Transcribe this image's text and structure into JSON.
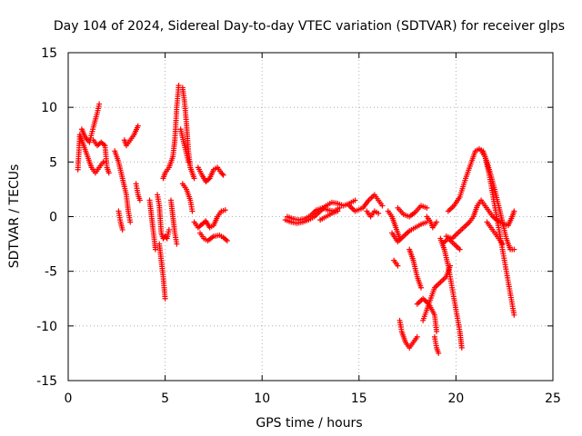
{
  "chart_data": {
    "type": "scatter",
    "title": "Day 104 of 2024, Sidereal Day-to-day VTEC variation (SDTVAR) for receiver glps",
    "xlabel": "GPS time / hours",
    "ylabel": "SDTVAR / TECUs",
    "xlim": [
      0,
      25
    ],
    "ylim": [
      -15,
      15
    ],
    "xticks": [
      0,
      5,
      10,
      15,
      20,
      25
    ],
    "xtick_labels": [
      "0",
      "5",
      "10",
      "15",
      "20",
      "25"
    ],
    "yticks": [
      -15,
      -10,
      -5,
      0,
      5,
      10,
      15
    ],
    "ytick_labels": [
      "-15",
      "-10",
      "-5",
      "0",
      "5",
      "10",
      "15"
    ],
    "grid": true,
    "marker": "+",
    "series": [
      {
        "name": "SDTVAR",
        "color": "#ff0000",
        "segments": [
          [
            [
              0.5,
              4.3
            ],
            [
              0.6,
              7.5
            ],
            [
              0.8,
              6.5
            ],
            [
              1.0,
              5.5
            ],
            [
              1.2,
              4.5
            ],
            [
              1.4,
              4.0
            ],
            [
              1.6,
              4.5
            ],
            [
              1.8,
              5.0
            ]
          ],
          [
            [
              0.7,
              8.0
            ],
            [
              0.9,
              7.2
            ],
            [
              1.1,
              6.8
            ],
            [
              1.3,
              8.2
            ],
            [
              1.5,
              9.5
            ],
            [
              1.6,
              10.3
            ]
          ],
          [
            [
              1.3,
              7.0
            ],
            [
              1.5,
              6.5
            ],
            [
              1.7,
              6.8
            ],
            [
              1.9,
              6.5
            ],
            [
              2.0,
              4.5
            ],
            [
              2.1,
              4.0
            ]
          ],
          [
            [
              2.4,
              6.0
            ],
            [
              2.6,
              5.0
            ],
            [
              2.8,
              3.5
            ],
            [
              3.0,
              2.0
            ],
            [
              3.1,
              0.5
            ],
            [
              3.2,
              -0.5
            ]
          ],
          [
            [
              2.6,
              0.5
            ],
            [
              2.7,
              -0.5
            ],
            [
              2.8,
              -1.2
            ]
          ],
          [
            [
              2.9,
              7.0
            ],
            [
              3.0,
              6.5
            ],
            [
              3.2,
              7.0
            ],
            [
              3.4,
              7.5
            ],
            [
              3.6,
              8.3
            ]
          ],
          [
            [
              3.5,
              3.0
            ],
            [
              3.6,
              2.0
            ],
            [
              3.7,
              1.5
            ]
          ],
          [
            [
              4.2,
              1.5
            ],
            [
              4.3,
              0.0
            ],
            [
              4.4,
              -1.5
            ],
            [
              4.5,
              -3.0
            ]
          ],
          [
            [
              4.6,
              2.0
            ],
            [
              4.7,
              1.0
            ],
            [
              4.8,
              -1.5
            ],
            [
              4.9,
              -2.0
            ],
            [
              5.0,
              -1.8
            ],
            [
              5.1,
              -2.0
            ],
            [
              5.2,
              -1.2
            ]
          ],
          [
            [
              4.7,
              -2.5
            ],
            [
              4.8,
              -4.0
            ],
            [
              4.9,
              -5.5
            ],
            [
              5.0,
              -7.5
            ]
          ],
          [
            [
              4.9,
              3.5
            ],
            [
              5.0,
              4.0
            ],
            [
              5.2,
              4.5
            ],
            [
              5.4,
              5.5
            ],
            [
              5.5,
              7.0
            ],
            [
              5.6,
              10.0
            ],
            [
              5.7,
              12.0
            ]
          ],
          [
            [
              5.3,
              1.5
            ],
            [
              5.4,
              0.0
            ],
            [
              5.5,
              -1.5
            ],
            [
              5.6,
              -2.5
            ]
          ],
          [
            [
              5.9,
              11.8
            ],
            [
              6.0,
              10.5
            ],
            [
              6.1,
              8.5
            ],
            [
              6.2,
              6.0
            ],
            [
              6.3,
              4.5
            ],
            [
              6.5,
              3.5
            ]
          ],
          [
            [
              5.8,
              8.0
            ],
            [
              6.0,
              6.5
            ],
            [
              6.2,
              5.0
            ]
          ],
          [
            [
              5.9,
              3.0
            ],
            [
              6.1,
              2.5
            ],
            [
              6.3,
              1.5
            ],
            [
              6.4,
              0.5
            ]
          ],
          [
            [
              6.7,
              4.5
            ],
            [
              6.9,
              3.8
            ],
            [
              7.1,
              3.2
            ],
            [
              7.3,
              3.5
            ],
            [
              7.5,
              4.3
            ],
            [
              7.7,
              4.5
            ],
            [
              7.9,
              4.0
            ],
            [
              8.0,
              3.8
            ]
          ],
          [
            [
              6.5,
              -0.5
            ],
            [
              6.7,
              -1.0
            ],
            [
              6.9,
              -0.7
            ],
            [
              7.1,
              -0.4
            ],
            [
              7.3,
              -1.0
            ],
            [
              7.5,
              -0.8
            ],
            [
              7.7,
              0.0
            ],
            [
              7.9,
              0.5
            ],
            [
              8.1,
              0.6
            ]
          ],
          [
            [
              6.8,
              -1.5
            ],
            [
              7.0,
              -2.0
            ],
            [
              7.2,
              -2.2
            ],
            [
              7.5,
              -1.8
            ],
            [
              7.8,
              -1.7
            ],
            [
              8.0,
              -1.9
            ],
            [
              8.2,
              -2.2
            ]
          ],
          [
            [
              11.2,
              -0.3
            ],
            [
              11.5,
              -0.5
            ],
            [
              11.8,
              -0.6
            ],
            [
              12.1,
              -0.5
            ],
            [
              12.4,
              -0.3
            ],
            [
              12.7,
              0.0
            ],
            [
              13.0,
              0.5
            ],
            [
              13.3,
              1.0
            ],
            [
              13.6,
              1.3
            ],
            [
              13.9,
              1.2
            ],
            [
              14.2,
              1.0
            ],
            [
              14.5,
              1.2
            ],
            [
              14.8,
              1.5
            ]
          ],
          [
            [
              11.3,
              0.0
            ],
            [
              11.6,
              -0.2
            ],
            [
              11.9,
              -0.3
            ],
            [
              12.2,
              -0.2
            ],
            [
              12.5,
              0.1
            ],
            [
              12.8,
              0.6
            ],
            [
              13.1,
              0.8
            ],
            [
              13.4,
              0.6
            ],
            [
              13.7,
              0.5
            ],
            [
              14.0,
              0.8
            ]
          ],
          [
            [
              13.0,
              -0.3
            ],
            [
              13.3,
              0.0
            ],
            [
              13.6,
              0.3
            ],
            [
              13.9,
              0.5
            ]
          ],
          [
            [
              14.5,
              1.0
            ],
            [
              14.8,
              0.5
            ],
            [
              15.2,
              0.8
            ],
            [
              15.5,
              1.5
            ],
            [
              15.8,
              2.0
            ],
            [
              16.2,
              1.0
            ]
          ],
          [
            [
              15.4,
              0.5
            ],
            [
              15.6,
              0.0
            ],
            [
              15.8,
              0.5
            ],
            [
              16.0,
              0.3
            ]
          ],
          [
            [
              16.5,
              0.5
            ],
            [
              16.7,
              0.0
            ],
            [
              16.9,
              -1.0
            ],
            [
              17.1,
              -2.0
            ]
          ],
          [
            [
              16.7,
              -1.5
            ],
            [
              17.0,
              -2.3
            ],
            [
              17.3,
              -1.8
            ],
            [
              17.6,
              -1.3
            ],
            [
              17.9,
              -1.0
            ],
            [
              18.2,
              -0.7
            ],
            [
              18.5,
              -0.5
            ]
          ],
          [
            [
              17.0,
              0.8
            ],
            [
              17.3,
              0.2
            ],
            [
              17.6,
              0.0
            ],
            [
              17.9,
              0.4
            ],
            [
              18.2,
              1.0
            ],
            [
              18.5,
              0.8
            ]
          ],
          [
            [
              16.8,
              -4.0
            ],
            [
              17.0,
              -4.5
            ]
          ],
          [
            [
              17.1,
              -9.5
            ],
            [
              17.2,
              -10.5
            ],
            [
              17.4,
              -11.5
            ],
            [
              17.6,
              -12.0
            ],
            [
              17.8,
              -11.5
            ],
            [
              18.0,
              -11.0
            ]
          ],
          [
            [
              17.6,
              -3.0
            ],
            [
              17.8,
              -4.0
            ],
            [
              18.0,
              -5.5
            ],
            [
              18.2,
              -6.5
            ]
          ],
          [
            [
              18.0,
              -8.0
            ],
            [
              18.3,
              -7.5
            ],
            [
              18.6,
              -8.0
            ],
            [
              18.9,
              -9.0
            ],
            [
              19.0,
              -10.5
            ]
          ],
          [
            [
              18.3,
              -9.5
            ],
            [
              18.6,
              -8.0
            ],
            [
              18.9,
              -6.5
            ],
            [
              19.2,
              -6.0
            ],
            [
              19.5,
              -5.5
            ],
            [
              19.7,
              -4.5
            ]
          ],
          [
            [
              18.9,
              -11.0
            ],
            [
              19.0,
              -12.0
            ],
            [
              19.1,
              -12.5
            ]
          ],
          [
            [
              18.5,
              0.0
            ],
            [
              18.7,
              -0.5
            ],
            [
              18.8,
              -1.0
            ],
            [
              19.0,
              -0.5
            ]
          ],
          [
            [
              19.3,
              -2.5
            ],
            [
              19.6,
              -2.0
            ],
            [
              19.9,
              -2.5
            ],
            [
              20.2,
              -3.0
            ]
          ],
          [
            [
              19.2,
              -2.0
            ],
            [
              19.4,
              -3.0
            ],
            [
              19.6,
              -4.5
            ],
            [
              19.8,
              -6.5
            ],
            [
              20.0,
              -8.5
            ],
            [
              20.2,
              -10.5
            ],
            [
              20.3,
              -12.0
            ]
          ],
          [
            [
              19.6,
              0.5
            ],
            [
              19.9,
              1.0
            ],
            [
              20.2,
              1.8
            ],
            [
              20.5,
              3.5
            ],
            [
              20.8,
              5.0
            ],
            [
              21.0,
              6.0
            ],
            [
              21.2,
              6.2
            ],
            [
              21.4,
              6.0
            ],
            [
              21.6,
              5.0
            ],
            [
              21.8,
              3.8
            ],
            [
              22.0,
              2.5
            ],
            [
              22.2,
              1.0
            ],
            [
              22.4,
              -0.5
            ],
            [
              22.6,
              -2.0
            ],
            [
              22.8,
              -3.0
            ],
            [
              23.0,
              -3.0
            ]
          ],
          [
            [
              21.3,
              6.0
            ],
            [
              21.5,
              5.5
            ],
            [
              21.7,
              4.0
            ],
            [
              21.9,
              2.0
            ],
            [
              22.1,
              0.0
            ],
            [
              22.3,
              -2.0
            ],
            [
              22.5,
              -4.0
            ],
            [
              22.7,
              -6.0
            ],
            [
              22.9,
              -8.0
            ],
            [
              23.0,
              -9.0
            ]
          ],
          [
            [
              19.5,
              -1.8
            ],
            [
              19.8,
              -2.0
            ],
            [
              20.1,
              -1.5
            ],
            [
              20.4,
              -1.0
            ],
            [
              20.7,
              -0.5
            ],
            [
              20.9,
              0.0
            ],
            [
              21.1,
              1.0
            ],
            [
              21.3,
              1.5
            ],
            [
              21.5,
              1.0
            ],
            [
              21.7,
              0.5
            ],
            [
              21.9,
              0.0
            ],
            [
              22.1,
              -0.3
            ],
            [
              22.4,
              -0.6
            ],
            [
              22.7,
              -0.8
            ],
            [
              22.9,
              0.0
            ],
            [
              23.0,
              0.5
            ]
          ],
          [
            [
              21.6,
              -0.5
            ],
            [
              21.8,
              -1.0
            ],
            [
              22.0,
              -1.5
            ],
            [
              22.2,
              -2.0
            ],
            [
              22.4,
              -2.5
            ]
          ]
        ]
      }
    ]
  }
}
